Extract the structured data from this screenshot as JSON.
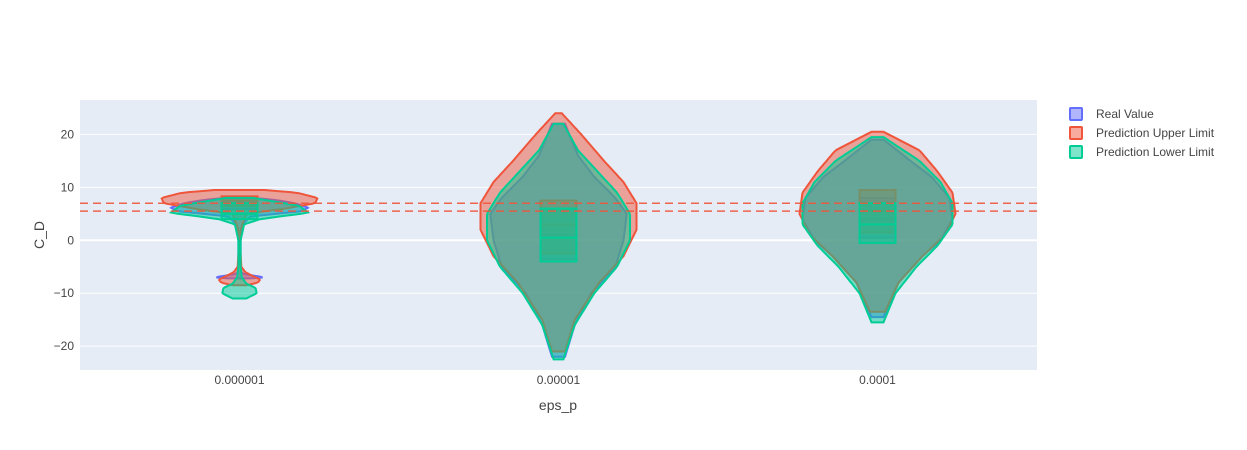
{
  "chart_data": {
    "type": "violin",
    "title": "",
    "xlabel": "eps_p",
    "ylabel": "C_D",
    "categories": [
      "0.000001",
      "0.00001",
      "0.0001"
    ],
    "ylim": [
      -24.5,
      26.5
    ],
    "yticks": [
      -20,
      -10,
      0,
      10,
      20
    ],
    "grid": true,
    "legend_position": "top-right",
    "reference_lines": [
      {
        "y": 7.0,
        "color": "#EF553B",
        "style": "dashed"
      },
      {
        "y": 5.5,
        "color": "#EF553B",
        "style": "dashed"
      }
    ],
    "series": [
      {
        "name": "Real Value",
        "color": "#636EFA",
        "violins": [
          {
            "category": "0.000001",
            "min": -7.2,
            "q1": 5.9,
            "median": 6.5,
            "q3": 7.2,
            "max": 8.0,
            "profile": [
              [
                -7.2,
                0.5
              ],
              [
                -7.0,
                1.1
              ],
              [
                -6.8,
                0.8
              ],
              [
                -6.4,
                0.2
              ],
              [
                -6.0,
                0.08
              ],
              [
                -4,
                0.05
              ],
              [
                0,
                0.05
              ],
              [
                3,
                0.12
              ],
              [
                4.5,
                0.5
              ],
              [
                5.5,
                2.7
              ],
              [
                6.2,
                3.0
              ],
              [
                7.0,
                2.4
              ],
              [
                7.6,
                1.6
              ],
              [
                8.0,
                0.6
              ]
            ]
          },
          {
            "category": "0.00001",
            "min": -22.0,
            "q1": -3.5,
            "median": 1.0,
            "q3": 6.0,
            "max": 22.0,
            "profile": [
              [
                -22,
                0.04
              ],
              [
                -16,
                0.1
              ],
              [
                -10,
                0.2
              ],
              [
                -5,
                0.35
              ],
              [
                0,
                0.4
              ],
              [
                5,
                0.42
              ],
              [
                8,
                0.35
              ],
              [
                12,
                0.22
              ],
              [
                16,
                0.12
              ],
              [
                22,
                0.04
              ]
            ]
          },
          {
            "category": "0.0001",
            "min": -14.5,
            "q1": 0.5,
            "median": 4.0,
            "q3": 8.0,
            "max": 19.0,
            "profile": [
              [
                -14.5,
                0.04
              ],
              [
                -8,
                0.14
              ],
              [
                -3,
                0.3
              ],
              [
                0,
                0.42
              ],
              [
                4,
                0.5
              ],
              [
                8,
                0.48
              ],
              [
                12,
                0.36
              ],
              [
                15,
                0.22
              ],
              [
                19,
                0.04
              ]
            ]
          }
        ]
      },
      {
        "name": "Prediction Upper Limit",
        "color": "#EF553B",
        "violins": [
          {
            "category": "0.000001",
            "min": -8.5,
            "q1": 6.5,
            "median": 7.5,
            "q3": 8.3,
            "max": 9.5,
            "profile": [
              [
                -8.5,
                0.3
              ],
              [
                -8,
                0.8
              ],
              [
                -7.4,
                0.9
              ],
              [
                -6.8,
                0.6
              ],
              [
                -6.0,
                0.25
              ],
              [
                -5,
                0.08
              ],
              [
                -2,
                0.04
              ],
              [
                2,
                0.05
              ],
              [
                5,
                0.3
              ],
              [
                6.0,
                2.0
              ],
              [
                7.0,
                3.3
              ],
              [
                8.0,
                3.4
              ],
              [
                9.0,
                2.5
              ],
              [
                9.5,
                1.1
              ]
            ]
          },
          {
            "category": "0.00001",
            "min": -21.0,
            "q1": -2.5,
            "median": 3.0,
            "q3": 7.5,
            "max": 24.0,
            "profile": [
              [
                -21,
                0.04
              ],
              [
                -15,
                0.1
              ],
              [
                -8,
                0.25
              ],
              [
                -3,
                0.4
              ],
              [
                2,
                0.48
              ],
              [
                7,
                0.48
              ],
              [
                11,
                0.4
              ],
              [
                15,
                0.28
              ],
              [
                20,
                0.14
              ],
              [
                24,
                0.02
              ]
            ]
          },
          {
            "category": "0.0001",
            "min": -13.5,
            "q1": 1.5,
            "median": 5.5,
            "q3": 9.5,
            "max": 20.5,
            "profile": [
              [
                -13.5,
                0.05
              ],
              [
                -8,
                0.14
              ],
              [
                -3,
                0.3
              ],
              [
                1,
                0.45
              ],
              [
                5,
                0.52
              ],
              [
                9,
                0.5
              ],
              [
                13,
                0.4
              ],
              [
                17,
                0.28
              ],
              [
                20.5,
                0.04
              ]
            ]
          }
        ]
      },
      {
        "name": "Prediction Lower Limit",
        "color": "#00CC96",
        "violins": [
          {
            "category": "0.000001",
            "min": -11.0,
            "q1": 4.0,
            "median": 5.0,
            "q3": 7.0,
            "max": 8.0,
            "profile": [
              [
                -11,
                0.3
              ],
              [
                -10,
                0.75
              ],
              [
                -9,
                0.7
              ],
              [
                -8.2,
                0.3
              ],
              [
                -7,
                0.1
              ],
              [
                -5,
                0.05
              ],
              [
                0,
                0.05
              ],
              [
                3,
                0.2
              ],
              [
                4,
                0.9
              ],
              [
                5.2,
                3.0
              ],
              [
                6.5,
                2.6
              ],
              [
                7.5,
                1.3
              ],
              [
                8.0,
                0.6
              ]
            ]
          },
          {
            "category": "0.00001",
            "min": -22.5,
            "q1": -4.0,
            "median": 0.5,
            "q3": 6.0,
            "max": 22.0,
            "profile": [
              [
                -22.5,
                0.03
              ],
              [
                -16,
                0.1
              ],
              [
                -10,
                0.22
              ],
              [
                -5,
                0.36
              ],
              [
                0,
                0.44
              ],
              [
                5,
                0.44
              ],
              [
                9,
                0.36
              ],
              [
                13,
                0.24
              ],
              [
                17,
                0.12
              ],
              [
                22,
                0.03
              ]
            ]
          },
          {
            "category": "0.0001",
            "min": -15.5,
            "q1": -0.5,
            "median": 3.0,
            "q3": 7.0,
            "max": 19.5,
            "profile": [
              [
                -15.5,
                0.04
              ],
              [
                -10,
                0.12
              ],
              [
                -5,
                0.26
              ],
              [
                -1,
                0.4
              ],
              [
                3,
                0.5
              ],
              [
                7,
                0.5
              ],
              [
                11,
                0.42
              ],
              [
                15,
                0.28
              ],
              [
                19.5,
                0.04
              ]
            ]
          }
        ]
      }
    ]
  }
}
